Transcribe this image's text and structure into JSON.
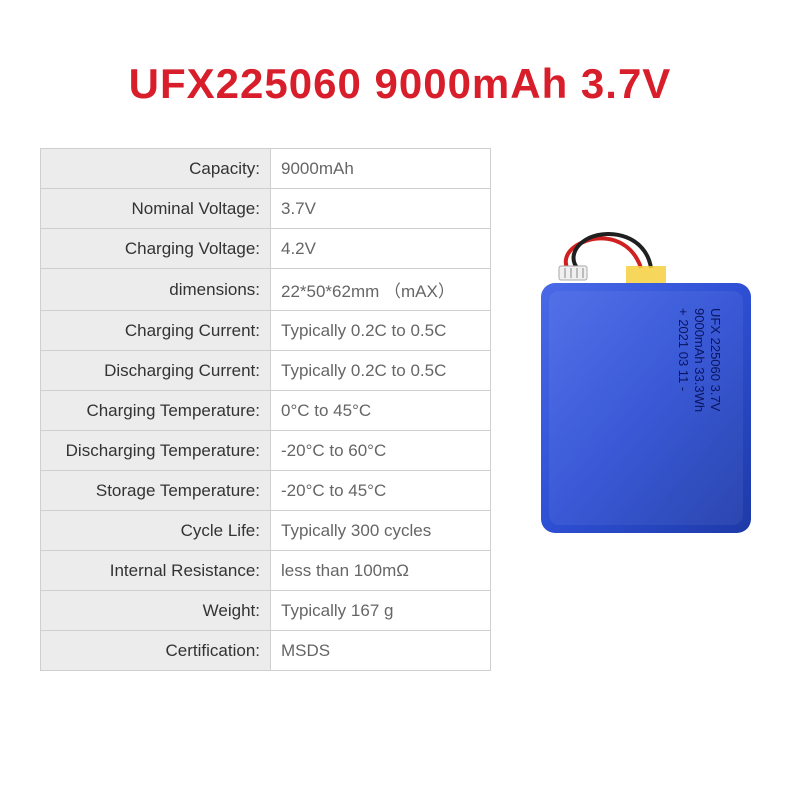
{
  "title": "UFX225060 9000mAh 3.7V",
  "title_color": "#d81e2a",
  "table": {
    "border_color": "#cfcfcf",
    "label_bg": "#ececec",
    "label_color": "#333333",
    "value_bg": "#ffffff",
    "value_color": "#666666",
    "rows": [
      {
        "label": "Capacity:",
        "value": "9000mAh"
      },
      {
        "label": "Nominal Voltage:",
        "value": "3.7V"
      },
      {
        "label": "Charging Voltage:",
        "value": "4.2V"
      },
      {
        "label": "dimensions:",
        "value": "22*50*62mm （mAX）"
      },
      {
        "label": "Charging Current:",
        "value": "Typically 0.2C to 0.5C"
      },
      {
        "label": "Discharging Current:",
        "value": "Typically 0.2C to 0.5C"
      },
      {
        "label": "Charging Temperature:",
        "value": "0°C to 45°C"
      },
      {
        "label": "Discharging Temperature:",
        "value": "-20°C to 60°C"
      },
      {
        "label": "Storage Temperature:",
        "value": "-20°C to 45°C"
      },
      {
        "label": "Cycle Life:",
        "value": "Typically 300 cycles"
      },
      {
        "label": "Internal Resistance:",
        "value": "less than 100mΩ"
      },
      {
        "label": "Weight:",
        "value": "Typically 167 g"
      },
      {
        "label": "Certification:",
        "value": "MSDS"
      }
    ]
  },
  "battery": {
    "body_color": "#2e4fd4",
    "body_highlight": "#4a6ae8",
    "body_shadow": "#1e3aa8",
    "wire_red": "#d02020",
    "wire_black": "#202020",
    "connector_color": "#f0f0f0",
    "label_lines": [
      "UFX 225060 3.7V",
      "9000mAh 33.3Wh",
      "+ 2021 03 11 -"
    ],
    "label_text_color": "#0a1560"
  }
}
